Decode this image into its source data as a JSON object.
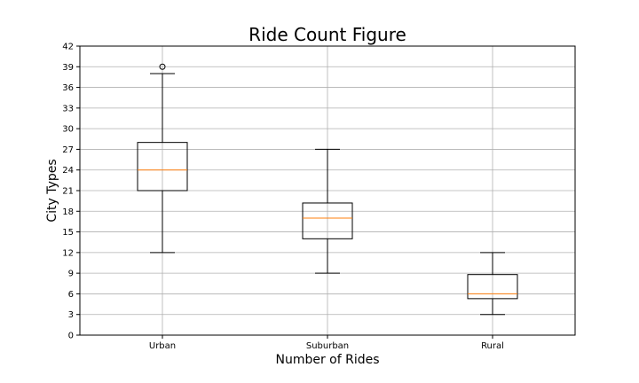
{
  "chart_data": {
    "type": "box",
    "title": "Ride Count Figure",
    "xlabel": "Number of Rides",
    "ylabel": "City Types",
    "ylim": [
      0,
      42
    ],
    "yticks": [
      0,
      3,
      6,
      9,
      12,
      15,
      18,
      21,
      24,
      27,
      30,
      33,
      36,
      39,
      42
    ],
    "grid": true,
    "categories": [
      "Urban",
      "Suburban",
      "Rural"
    ],
    "boxes": [
      {
        "name": "Urban",
        "whisker_low": 12,
        "q1": 21,
        "median": 24,
        "q3": 28,
        "whisker_high": 38,
        "outliers": [
          39
        ]
      },
      {
        "name": "Suburban",
        "whisker_low": 9,
        "q1": 14,
        "median": 17,
        "q3": 19.2,
        "whisker_high": 27,
        "outliers": []
      },
      {
        "name": "Rural",
        "whisker_low": 3,
        "q1": 5.3,
        "median": 6,
        "q3": 8.8,
        "whisker_high": 12,
        "outliers": []
      }
    ],
    "colors": {
      "box": "#000000",
      "median": "#ff7f0e",
      "grid": "#b0b0b0"
    }
  }
}
